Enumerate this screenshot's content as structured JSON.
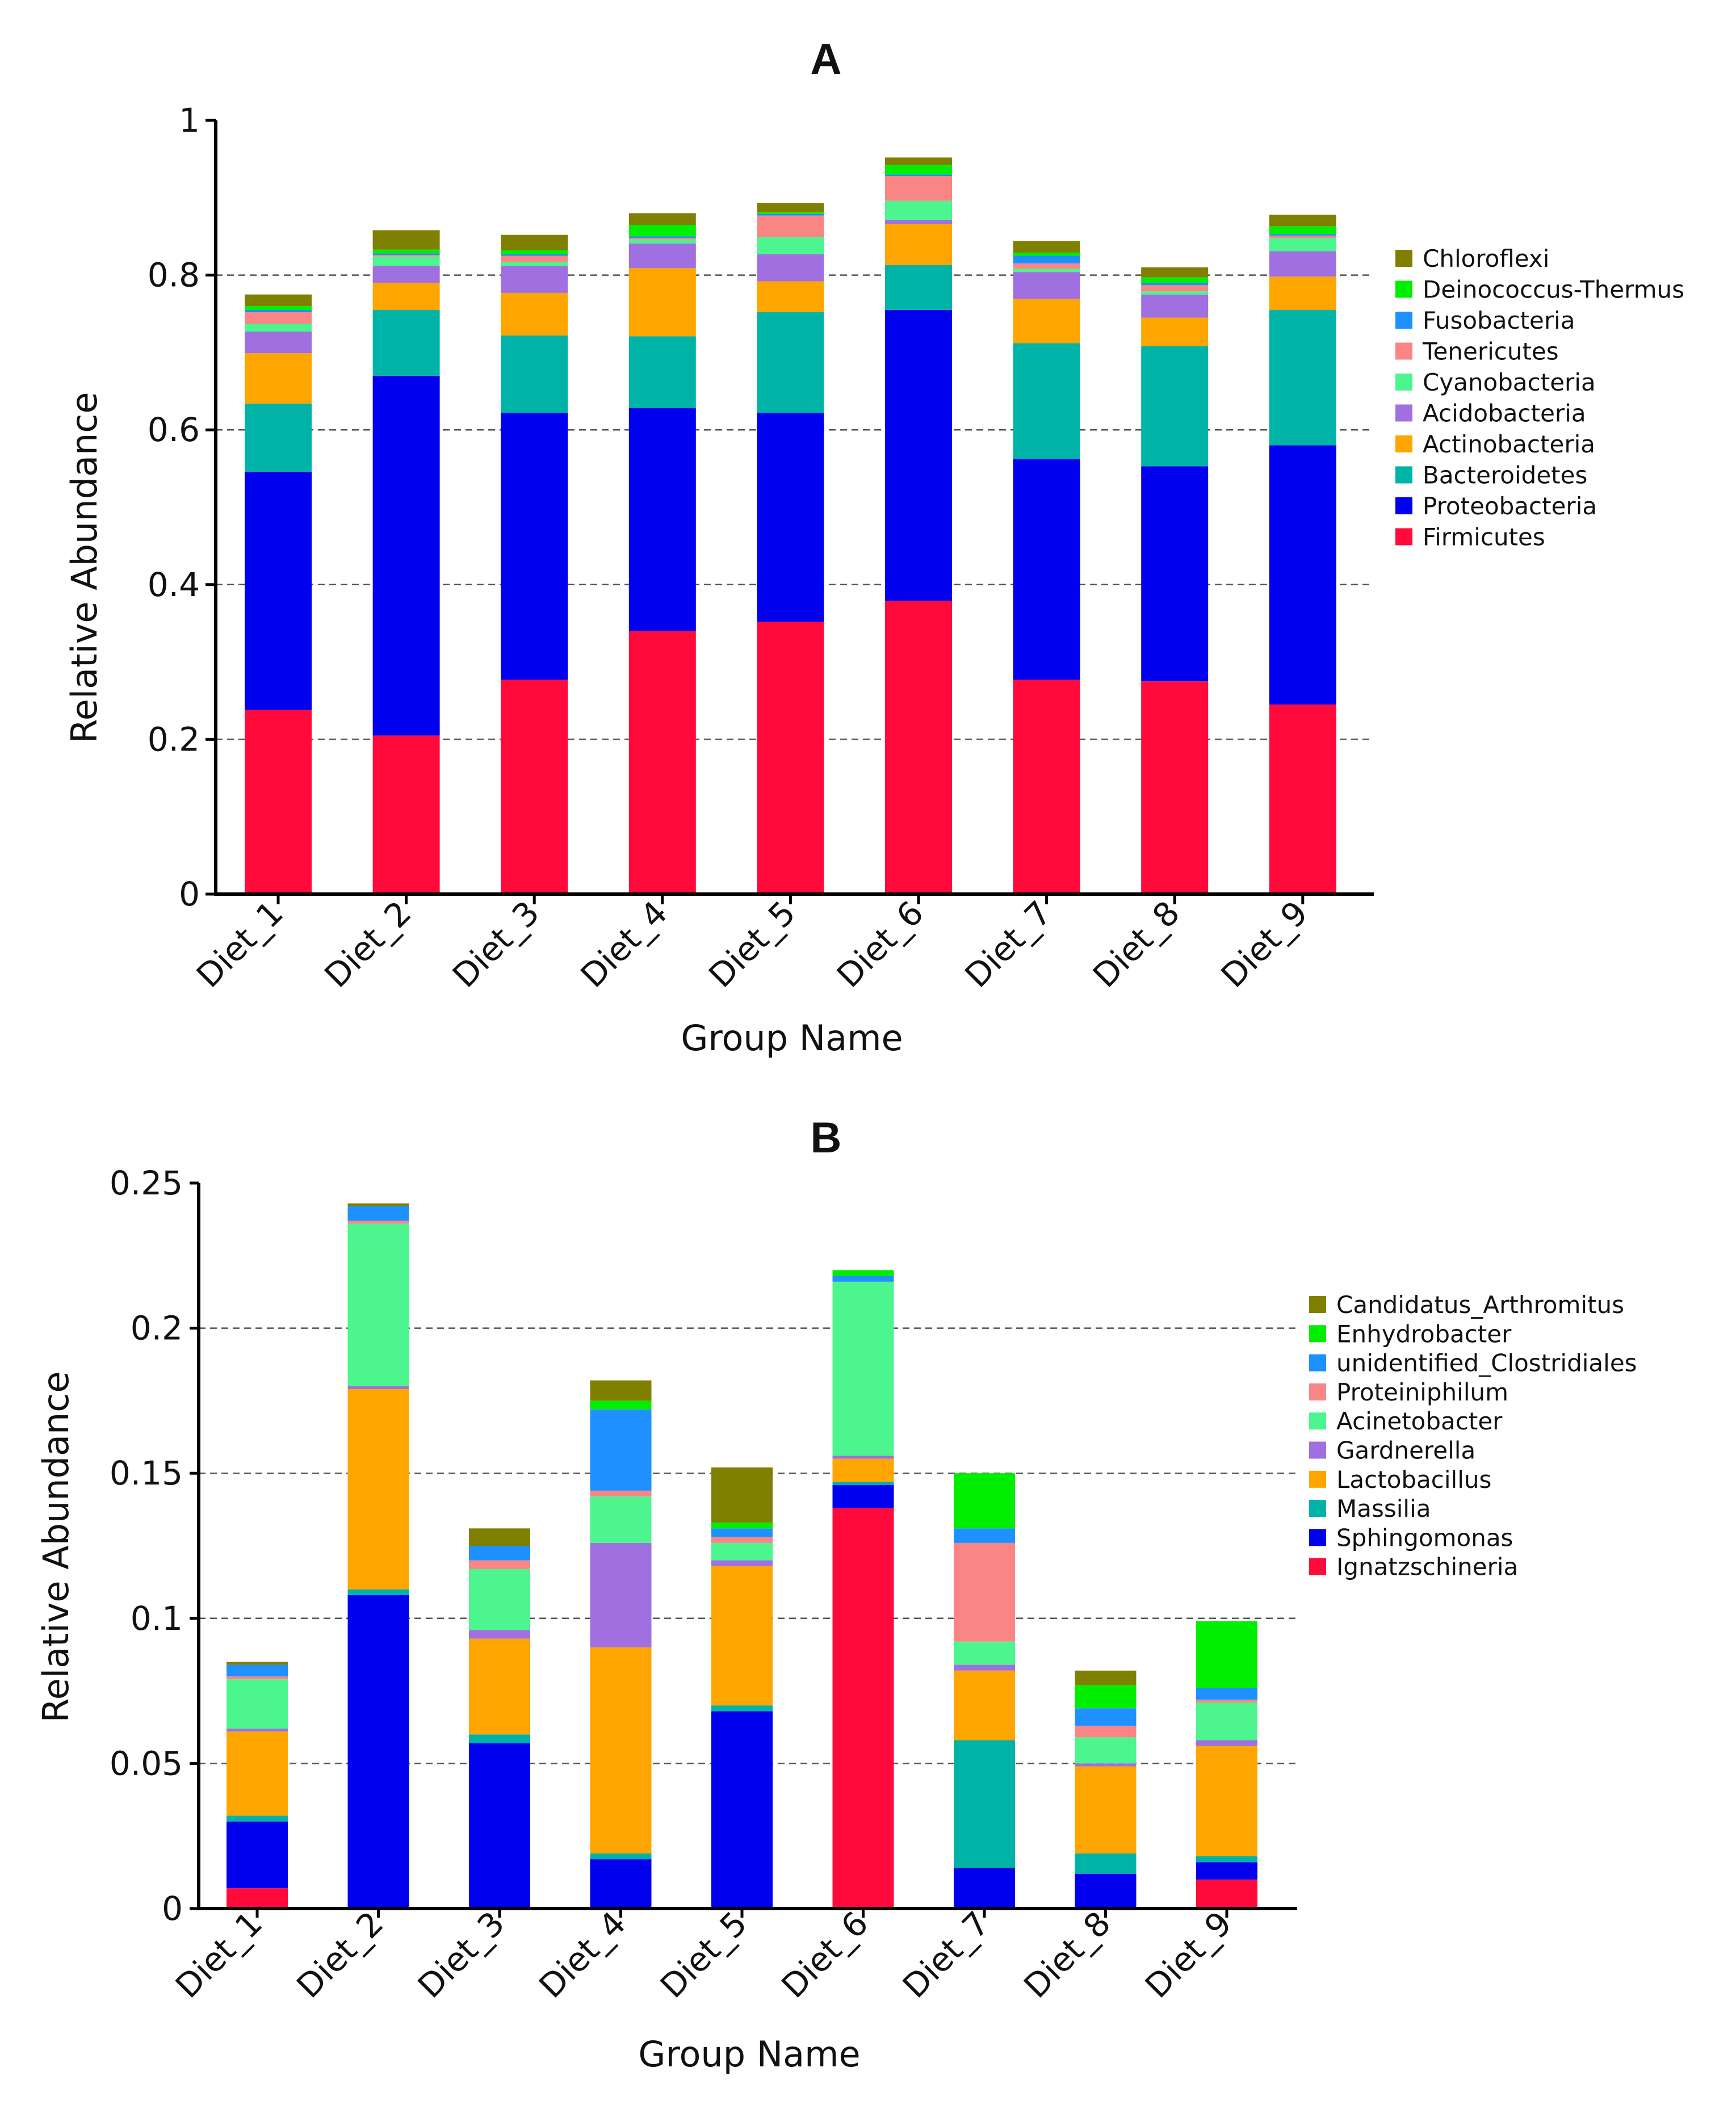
{
  "chart_data": [
    {
      "type": "bar",
      "stacked": true,
      "panel_label": "A",
      "xlabel": "Group Name",
      "ylabel": "Relative Abundance",
      "ylim": [
        0,
        1
      ],
      "yticks": [
        "0",
        "0.2",
        "0.4",
        "0.6",
        "0.8",
        "1"
      ],
      "grid": "dashed horizontal at 0.2, 0.4, 0.6, 0.8",
      "legend_position": "right",
      "categories": [
        "Diet_1",
        "Diet_2",
        "Diet_3",
        "Diet_4",
        "Diet_5",
        "Diet_6",
        "Diet_7",
        "Diet_8",
        "Diet_9"
      ],
      "series": [
        {
          "name": "Firmicutes",
          "color": "#ff0a3a",
          "values": [
            0.238,
            0.205,
            0.277,
            0.34,
            0.352,
            0.379,
            0.277,
            0.275,
            0.245
          ]
        },
        {
          "name": "Proteobacteria",
          "color": "#0000ee",
          "values": [
            0.308,
            0.465,
            0.345,
            0.288,
            0.27,
            0.376,
            0.285,
            0.278,
            0.335
          ]
        },
        {
          "name": "Bacteroidetes",
          "color": "#00b3a7",
          "values": [
            0.088,
            0.085,
            0.1,
            0.093,
            0.13,
            0.058,
            0.15,
            0.155,
            0.175
          ]
        },
        {
          "name": "Actinobacteria",
          "color": "#ffa500",
          "values": [
            0.065,
            0.035,
            0.055,
            0.088,
            0.04,
            0.053,
            0.057,
            0.037,
            0.043
          ]
        },
        {
          "name": "Acidobacteria",
          "color": "#a070e0",
          "values": [
            0.028,
            0.022,
            0.035,
            0.032,
            0.035,
            0.005,
            0.035,
            0.03,
            0.033
          ]
        },
        {
          "name": "Cyanobacteria",
          "color": "#4cf58e",
          "values": [
            0.01,
            0.012,
            0.005,
            0.005,
            0.022,
            0.025,
            0.004,
            0.004,
            0.017
          ]
        },
        {
          "name": "Tenericutes",
          "color": "#fa8585",
          "values": [
            0.015,
            0.002,
            0.008,
            0.002,
            0.028,
            0.032,
            0.007,
            0.008,
            0.003
          ]
        },
        {
          "name": "Fusobacteria",
          "color": "#1e90ff",
          "values": [
            0.003,
            0.002,
            0.002,
            0.002,
            0.002,
            0.002,
            0.01,
            0.003,
            0.002
          ]
        },
        {
          "name": "Deinococcus-Thermus",
          "color": "#00ee00",
          "values": [
            0.005,
            0.005,
            0.005,
            0.015,
            0.002,
            0.012,
            0.004,
            0.007,
            0.01
          ]
        },
        {
          "name": "Chloroflexi",
          "color": "#808000",
          "values": [
            0.015,
            0.025,
            0.02,
            0.015,
            0.012,
            0.01,
            0.015,
            0.013,
            0.015
          ]
        }
      ]
    },
    {
      "type": "bar",
      "stacked": true,
      "panel_label": "B",
      "xlabel": "Group Name",
      "ylabel": "Relative Abundance",
      "ylim": [
        0,
        0.25
      ],
      "yticks": [
        "0",
        "0.05",
        "0.1",
        "0.15",
        "0.2",
        "0.25"
      ],
      "grid": "dashed horizontal at 0.05, 0.1, 0.15, 0.2",
      "legend_position": "right",
      "categories": [
        "Diet_1",
        "Diet_2",
        "Diet_3",
        "Diet_4",
        "Diet_5",
        "Diet_6",
        "Diet_7",
        "Diet_8",
        "Diet_9"
      ],
      "series": [
        {
          "name": "Ignatzschineria",
          "color": "#ff0a3a",
          "values": [
            0.007,
            0.0,
            0.0,
            0.0,
            0.0,
            0.138,
            0.0,
            0.0,
            0.01
          ]
        },
        {
          "name": "Sphingomonas",
          "color": "#0000ee",
          "values": [
            0.023,
            0.108,
            0.057,
            0.017,
            0.068,
            0.008,
            0.014,
            0.012,
            0.006
          ]
        },
        {
          "name": "Massilia",
          "color": "#00b3a7",
          "values": [
            0.002,
            0.002,
            0.003,
            0.002,
            0.002,
            0.001,
            0.044,
            0.007,
            0.002
          ]
        },
        {
          "name": "Lactobacillus",
          "color": "#ffa500",
          "values": [
            0.029,
            0.069,
            0.033,
            0.071,
            0.048,
            0.008,
            0.024,
            0.03,
            0.038
          ]
        },
        {
          "name": "Gardnerella",
          "color": "#a070e0",
          "values": [
            0.001,
            0.001,
            0.003,
            0.036,
            0.002,
            0.001,
            0.002,
            0.001,
            0.002
          ]
        },
        {
          "name": "Acinetobacter",
          "color": "#4cf58e",
          "values": [
            0.017,
            0.056,
            0.021,
            0.016,
            0.006,
            0.06,
            0.008,
            0.009,
            0.013
          ]
        },
        {
          "name": "Proteiniphilum",
          "color": "#fa8585",
          "values": [
            0.001,
            0.001,
            0.003,
            0.002,
            0.002,
            0.0,
            0.034,
            0.004,
            0.001
          ]
        },
        {
          "name": "unidentified_Clostridiales",
          "color": "#1e90ff",
          "values": [
            0.004,
            0.005,
            0.005,
            0.028,
            0.003,
            0.002,
            0.005,
            0.006,
            0.004
          ]
        },
        {
          "name": "Enhydrobacter",
          "color": "#00ee00",
          "values": [
            0.0,
            0.0,
            0.0,
            0.003,
            0.002,
            0.002,
            0.019,
            0.008,
            0.023
          ]
        },
        {
          "name": "Candidatus_Arthromitus",
          "color": "#808000",
          "values": [
            0.001,
            0.001,
            0.006,
            0.007,
            0.019,
            0.0,
            0.0,
            0.005,
            0.0
          ]
        }
      ]
    }
  ]
}
